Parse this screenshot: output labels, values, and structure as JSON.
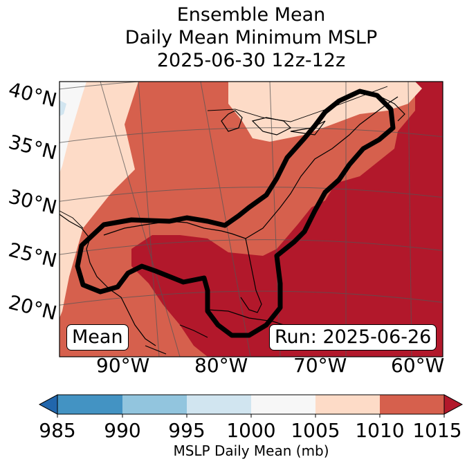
{
  "title": {
    "line1": "Ensemble Mean",
    "line2": "Daily Mean Minimum MSLP",
    "line3": "2025-06-30 12z-12z"
  },
  "map": {
    "lat_labels": [
      "40°N",
      "35°N",
      "30°N",
      "25°N",
      "20°N"
    ],
    "lon_labels": [
      "90°W",
      "80°W",
      "70°W",
      "60°W"
    ],
    "mean_label": "Mean",
    "run_label": "Run: 2025-06-26",
    "contour_color": "#000000"
  },
  "colorbar": {
    "ticks": [
      "985",
      "990",
      "995",
      "1000",
      "1005",
      "1010",
      "1015"
    ],
    "label": "MSLP Daily Mean (mb)",
    "colors": [
      "#2166ac",
      "#4393c3",
      "#92c5de",
      "#d1e5f0",
      "#f7f7f7",
      "#fddbc7",
      "#d6604d",
      "#b2182b"
    ]
  }
}
